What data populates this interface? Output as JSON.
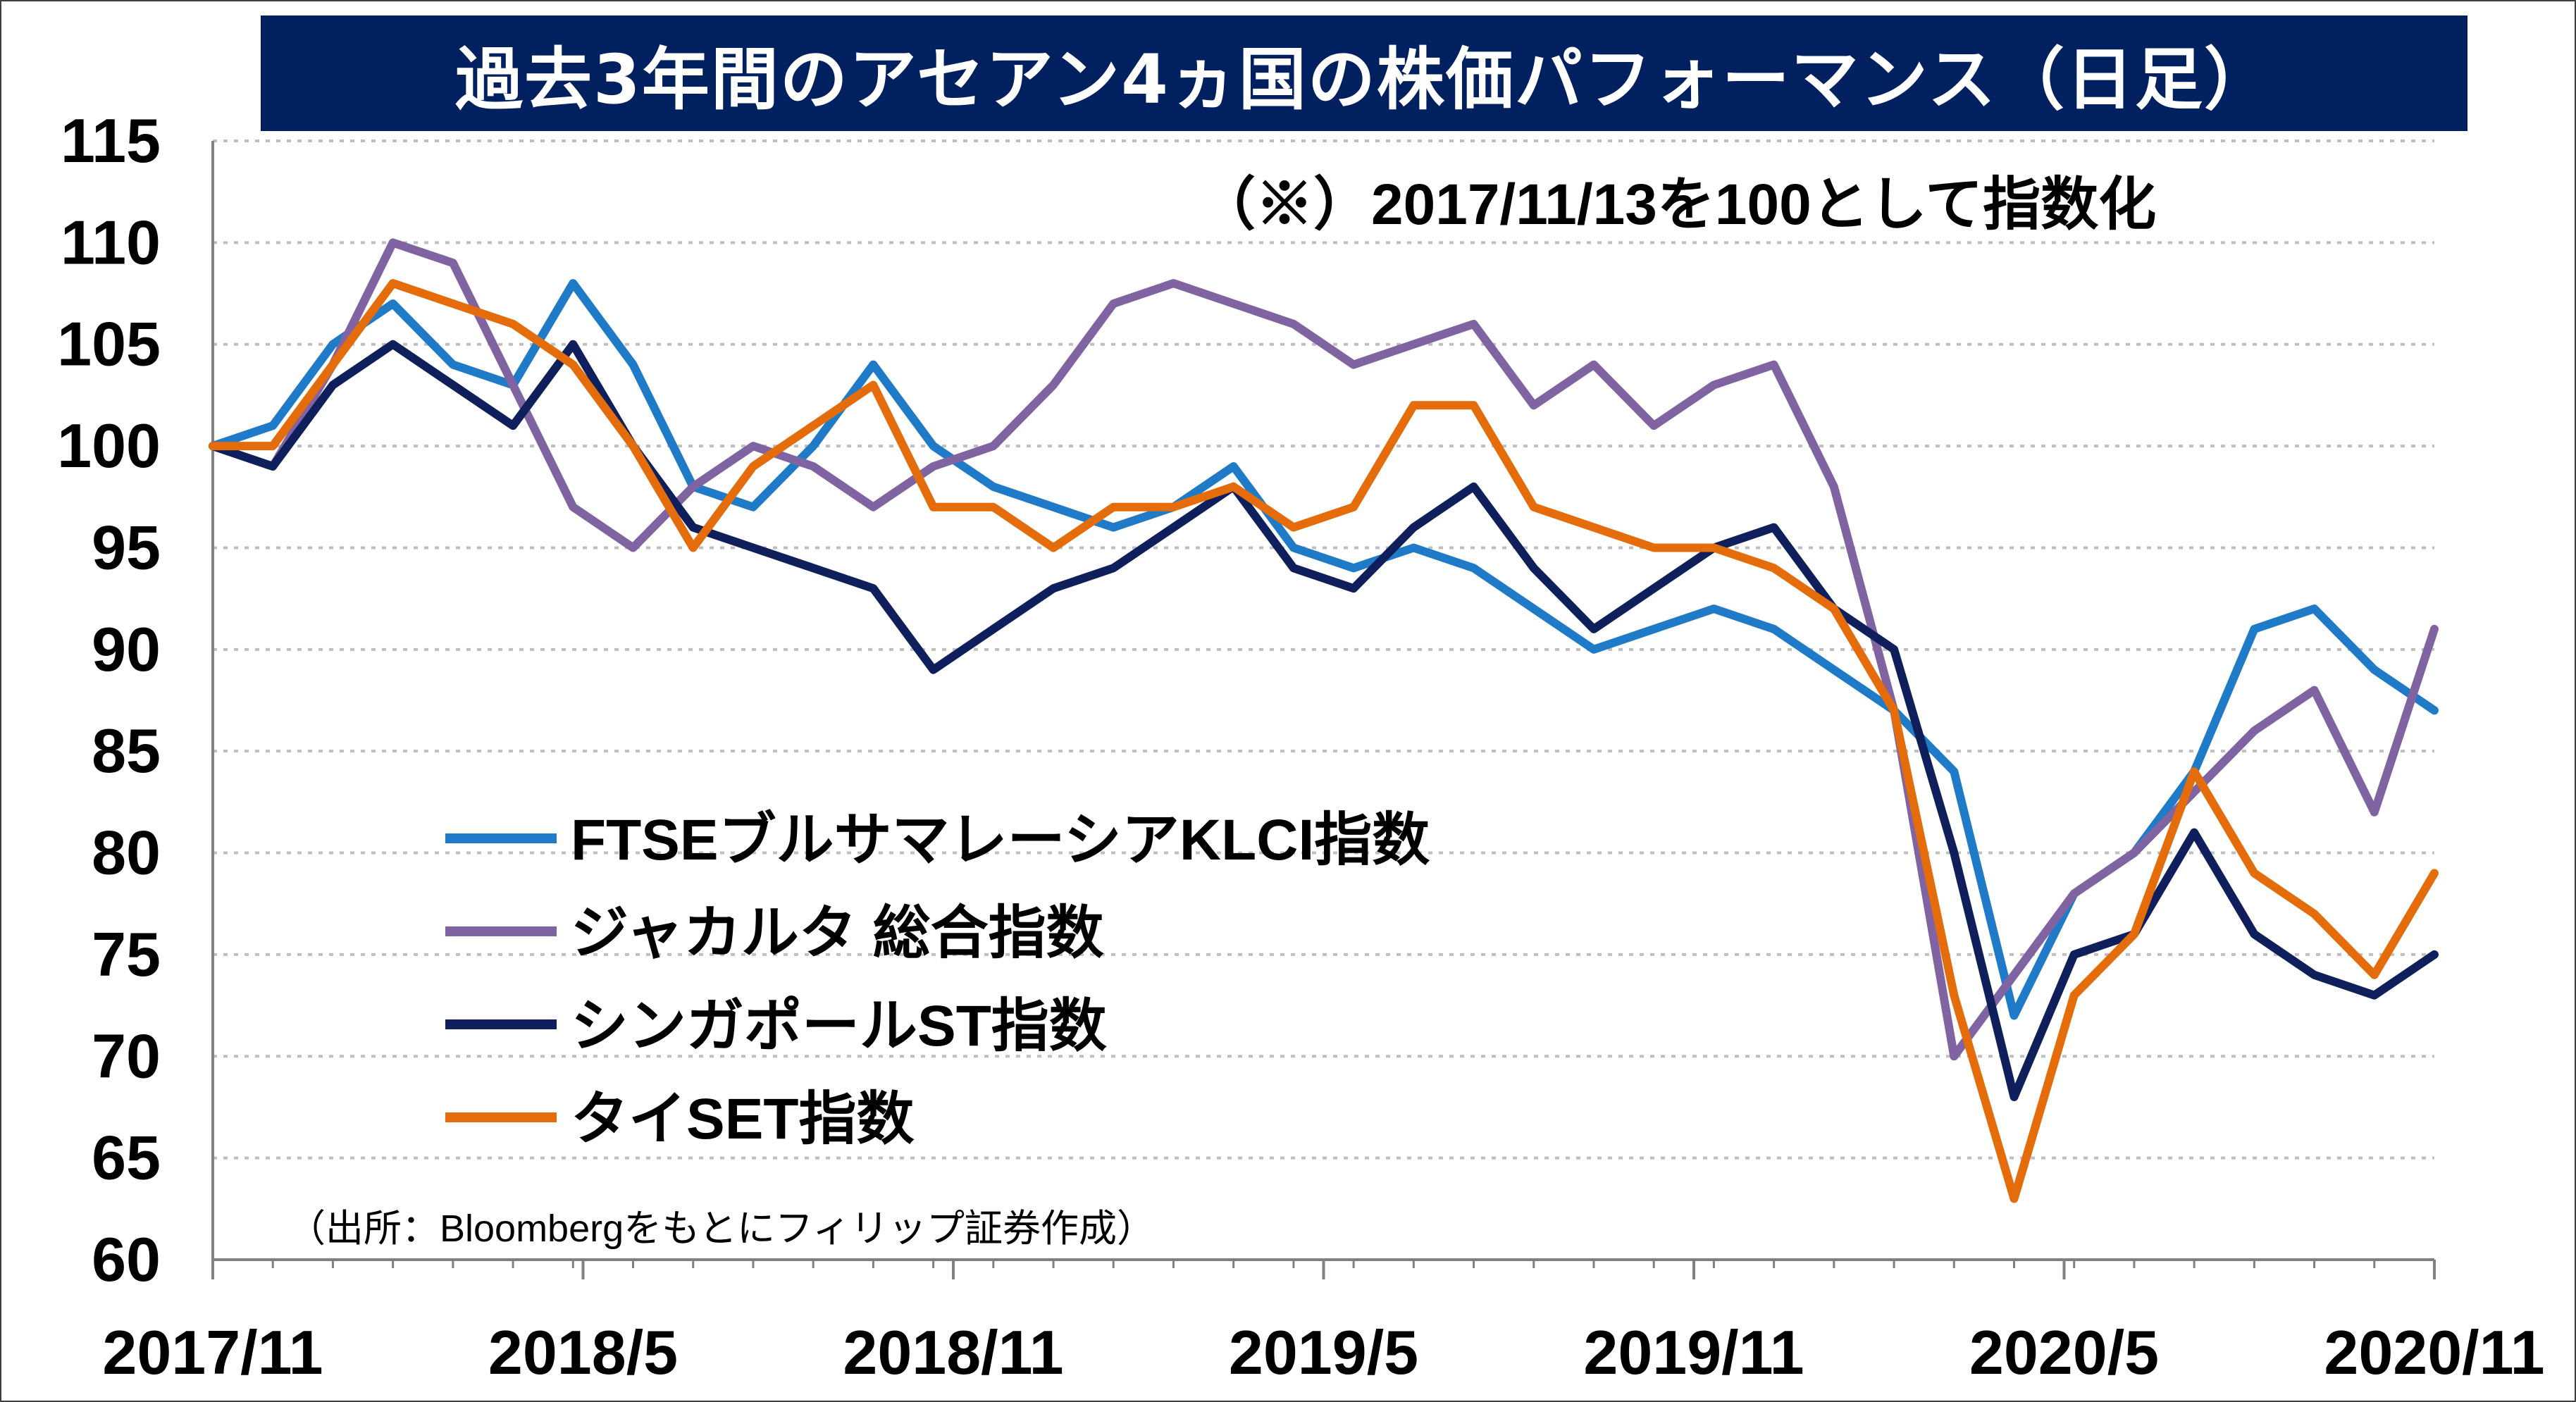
{
  "chart_data": {
    "type": "line",
    "title": "過去3年間のアセアン4ヵ国の株価パフォーマンス（日足）",
    "note": "（※）2017/11/13を100として指数化",
    "source": "（出所：Bloombergをもとにフィリップ証券作成）",
    "xlabel": "",
    "ylabel": "",
    "ylim": [
      60,
      115
    ],
    "yticks": [
      "60",
      "65",
      "70",
      "75",
      "80",
      "85",
      "90",
      "95",
      "100",
      "105",
      "110",
      "115"
    ],
    "xticks": [
      "2017/11",
      "2018/5",
      "2018/11",
      "2019/5",
      "2019/11",
      "2020/5",
      "2020/11"
    ],
    "grid": true,
    "legend_position": "lower-left",
    "x": [
      "2017/11",
      "2017/12",
      "2018/1",
      "2018/2",
      "2018/3",
      "2018/4",
      "2018/5",
      "2018/6",
      "2018/7",
      "2018/8",
      "2018/9",
      "2018/10",
      "2018/11",
      "2018/12",
      "2019/1",
      "2019/2",
      "2019/3",
      "2019/4",
      "2019/5",
      "2019/6",
      "2019/7",
      "2019/8",
      "2019/9",
      "2019/10",
      "2019/11",
      "2019/12",
      "2020/1",
      "2020/2",
      "2020/3",
      "2020/3b",
      "2020/4",
      "2020/5",
      "2020/6",
      "2020/7",
      "2020/8",
      "2020/9",
      "2020/10",
      "2020/11"
    ],
    "series": [
      {
        "name": "FTSEブルサマレーシアKLCI指数",
        "color": "#1F7BC8",
        "values": [
          100,
          101,
          105,
          107,
          104,
          103,
          108,
          104,
          98,
          97,
          100,
          104,
          100,
          98,
          97,
          96,
          97,
          99,
          95,
          94,
          95,
          94,
          92,
          90,
          91,
          92,
          91,
          89,
          87,
          84,
          72,
          78,
          80,
          84,
          91,
          92,
          89,
          87
        ]
      },
      {
        "name": "ジャカルタ 総合指数",
        "color": "#8064A2",
        "values": [
          100,
          99,
          104,
          110,
          109,
          103,
          97,
          95,
          98,
          100,
          99,
          97,
          99,
          100,
          103,
          107,
          108,
          107,
          106,
          104,
          105,
          106,
          102,
          104,
          101,
          103,
          104,
          98,
          87,
          70,
          74,
          78,
          80,
          83,
          86,
          88,
          82,
          91
        ]
      },
      {
        "name": "シンガポールST指数",
        "color": "#0F1F5C",
        "values": [
          100,
          99,
          103,
          105,
          103,
          101,
          105,
          100,
          96,
          95,
          94,
          93,
          89,
          91,
          93,
          94,
          96,
          98,
          94,
          93,
          96,
          98,
          94,
          91,
          93,
          95,
          96,
          92,
          90,
          80,
          68,
          75,
          76,
          81,
          76,
          74,
          73,
          75
        ]
      },
      {
        "name": "タイSET指数",
        "color": "#E46C0A",
        "values": [
          100,
          100,
          104,
          108,
          107,
          106,
          104,
          100,
          95,
          99,
          101,
          103,
          97,
          97,
          95,
          97,
          97,
          98,
          96,
          97,
          102,
          102,
          97,
          96,
          95,
          95,
          94,
          92,
          87,
          73,
          63,
          73,
          76,
          84,
          79,
          77,
          74,
          79
        ]
      }
    ]
  }
}
